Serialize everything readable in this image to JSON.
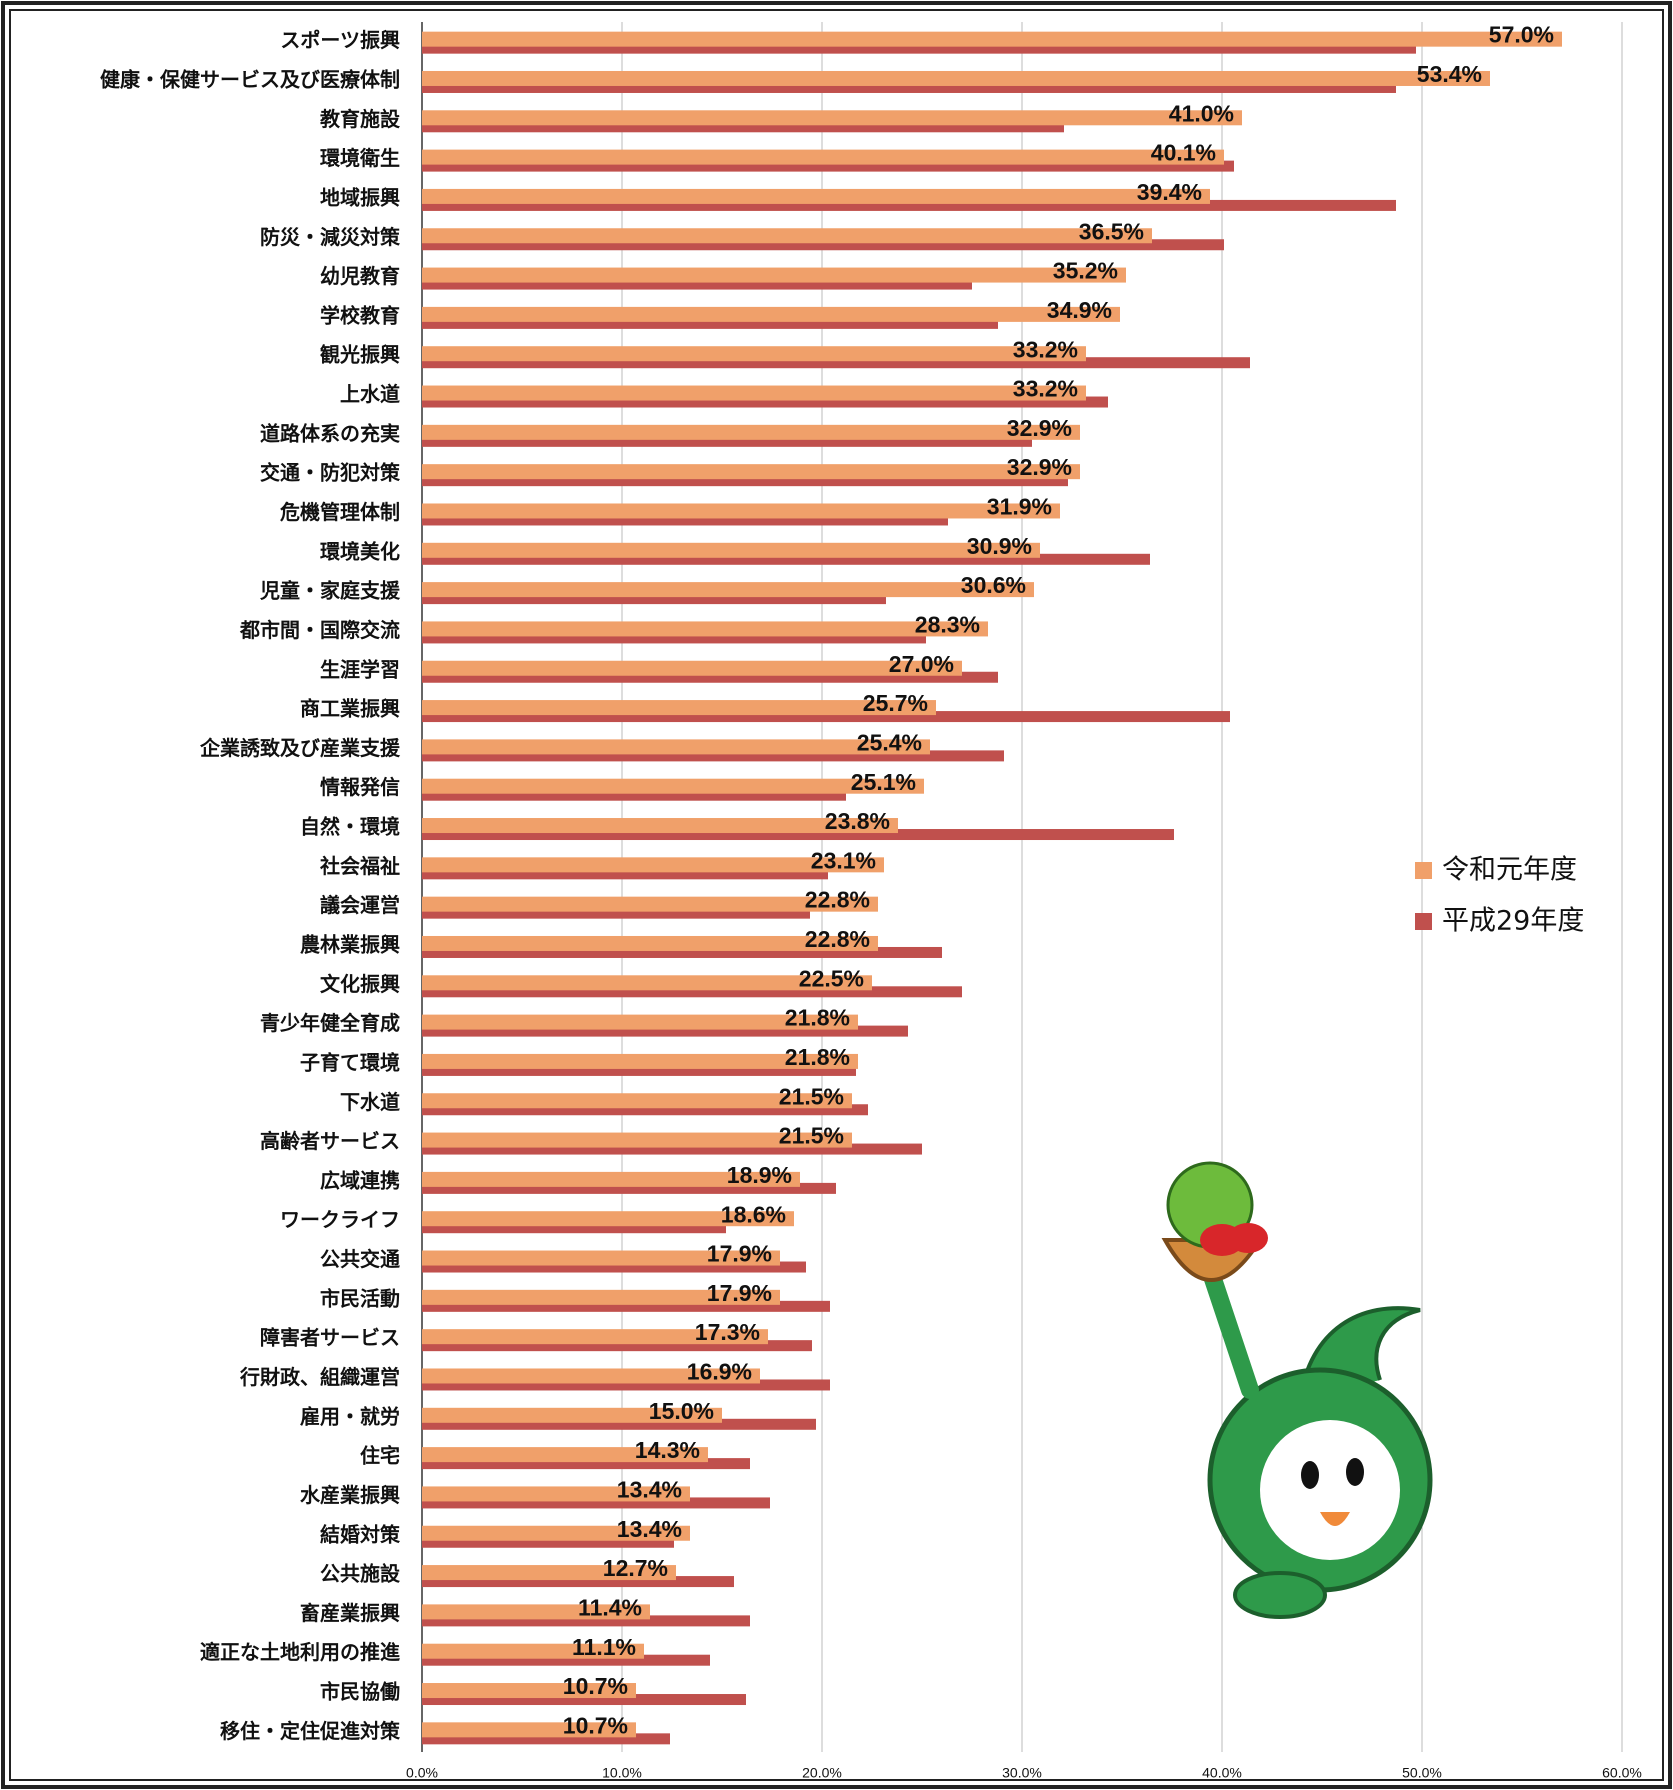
{
  "chart_data": {
    "type": "hbar",
    "categories": [
      "スポーツ振興",
      "健康・保健サービス及び医療体制",
      "教育施設",
      "環境衛生",
      "地域振興",
      "防災・減災対策",
      "幼児教育",
      "学校教育",
      "観光振興",
      "上水道",
      "道路体系の充実",
      "交通・防犯対策",
      "危機管理体制",
      "環境美化",
      "児童・家庭支援",
      "都市間・国際交流",
      "生涯学習",
      "商工業振興",
      "企業誘致及び産業支援",
      "情報発信",
      "自然・環境",
      "社会福祉",
      "議会運営",
      "農林業振興",
      "文化振興",
      "青少年健全育成",
      "子育て環境",
      "下水道",
      "高齢者サービス",
      "広域連携",
      "ワークライフ",
      "公共交通",
      "市民活動",
      "障害者サービス",
      "行財政、組織運営",
      "雇用・就労",
      "住宅",
      "水産業振興",
      "結婚対策",
      "公共施設",
      "畜産業振興",
      "適正な土地利用の推進",
      "市民協働",
      "移住・定住促進対策"
    ],
    "series": [
      {
        "name": "令和元年度",
        "color": "#f0a06a",
        "values": [
          57.0,
          53.4,
          41.0,
          40.1,
          39.4,
          36.5,
          35.2,
          34.9,
          33.2,
          33.2,
          32.9,
          32.9,
          31.9,
          30.9,
          30.6,
          28.3,
          27.0,
          25.7,
          25.4,
          25.1,
          23.8,
          23.1,
          22.8,
          22.8,
          22.5,
          21.8,
          21.8,
          21.5,
          21.5,
          18.9,
          18.6,
          17.9,
          17.9,
          17.3,
          16.9,
          15.0,
          14.3,
          13.4,
          13.4,
          12.7,
          11.4,
          11.1,
          10.7,
          10.7
        ],
        "value_labels": [
          "57.0%",
          "53.4%",
          "41.0%",
          "40.1%",
          "39.4%",
          "36.5%",
          "35.2%",
          "34.9%",
          "33.2%",
          "33.2%",
          "32.9%",
          "32.9%",
          "31.9%",
          "30.9%",
          "30.6%",
          "28.3%",
          "27.0%",
          "25.7%",
          "25.4%",
          "25.1%",
          "23.8%",
          "23.1%",
          "22.8%",
          "22.8%",
          "22.5%",
          "21.8%",
          "21.8%",
          "21.5%",
          "21.5%",
          "18.9%",
          "18.6%",
          "17.9%",
          "17.9%",
          "17.3%",
          "16.9%",
          "15.0%",
          "14.3%",
          "13.4%",
          "13.4%",
          "12.7%",
          "11.4%",
          "11.1%",
          "10.7%",
          "10.7%"
        ]
      },
      {
        "name": "平成29年度",
        "color": "#c0504d",
        "values": [
          49.7,
          48.7,
          32.1,
          40.6,
          48.7,
          40.1,
          27.5,
          28.8,
          41.4,
          34.3,
          30.5,
          32.3,
          26.3,
          36.4,
          23.2,
          25.2,
          28.8,
          40.4,
          29.1,
          21.2,
          37.6,
          20.3,
          19.4,
          26.0,
          27.0,
          24.3,
          21.7,
          22.3,
          25.0,
          20.7,
          15.2,
          19.2,
          20.4,
          19.5,
          20.4,
          19.7,
          16.4,
          17.4,
          12.6,
          15.6,
          16.4,
          14.4,
          16.2,
          12.4
        ]
      }
    ],
    "xlim": [
      0,
      60
    ],
    "xticks": [
      {
        "value": 0,
        "label": "0.0%"
      },
      {
        "value": 10,
        "label": "10.0%"
      },
      {
        "value": 20,
        "label": "20.0%"
      },
      {
        "value": 30,
        "label": "30.0%"
      },
      {
        "value": 40,
        "label": "40.0%"
      },
      {
        "value": 50,
        "label": "50.0%"
      },
      {
        "value": 60,
        "label": "60.0%"
      }
    ],
    "grid": true,
    "legend": "right"
  }
}
